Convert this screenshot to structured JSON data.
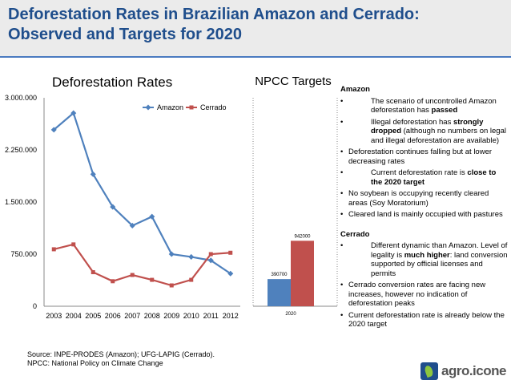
{
  "slide": {
    "title": "Deforestation Rates in Brazilian Amazon and Cerrado:\nObserved and Targets for 2020",
    "source": "Source: INPE-PRODES (Amazon); UFG-LAPIG (Cerrado).\nNPCC: National Policy on Climate Change",
    "logo_text": "agro.icone"
  },
  "colors": {
    "amazon": "#4f81bd",
    "cerrado": "#c0504d",
    "title": "#1f4e8c"
  },
  "chart_data": [
    {
      "type": "line",
      "title": "Deforestation Rates",
      "x": [
        "2003",
        "2004",
        "2005",
        "2006",
        "2007",
        "2008",
        "2009",
        "2010",
        "2011",
        "2012"
      ],
      "series": [
        {
          "name": "Amazon",
          "values": [
            2540000,
            2780000,
            1900000,
            1430000,
            1160000,
            1290000,
            750000,
            710000,
            660000,
            470000
          ]
        },
        {
          "name": "Cerrado",
          "values": [
            820000,
            890000,
            490000,
            360000,
            450000,
            380000,
            300000,
            380000,
            750000,
            770000
          ]
        }
      ],
      "yticks": [
        "3.000.000",
        "2.250.000",
        "1.500.000",
        "750.000",
        "0"
      ],
      "ylim": [
        0,
        3000000
      ],
      "legend": "top-right",
      "grid": false
    },
    {
      "type": "bar",
      "title": "NPCC Targets",
      "categories": [
        "2020"
      ],
      "series": [
        {
          "name": "Amazon",
          "values": [
            390700
          ],
          "label": "390700"
        },
        {
          "name": "Cerrado",
          "values": [
            942000
          ],
          "label": "942000"
        }
      ],
      "ylim": [
        0,
        3000000
      ]
    }
  ],
  "notes": {
    "amazon_heading": "Amazon",
    "amazon_items": [
      {
        "pre": "The scenario of uncontrolled Amazon deforestation has ",
        "bold": "passed",
        "post": "",
        "wide": true
      },
      {
        "pre": "Illegal deforestation has ",
        "bold": "strongly dropped",
        "post": " (although no numbers on legal and illegal deforestation are available)",
        "wide": true
      },
      {
        "pre": "Deforestation continues falling but at lower decreasing rates",
        "bold": "",
        "post": "",
        "wide": false
      },
      {
        "pre": "Current deforestation rate is ",
        "bold": "close to the 2020 target",
        "post": "",
        "wide": true
      },
      {
        "pre": "No soybean is occupying recently cleared areas (Soy Moratorium)",
        "bold": "",
        "post": "",
        "wide": false
      },
      {
        "pre": "Cleared land is mainly occupied with pastures",
        "bold": "",
        "post": "",
        "wide": false
      }
    ],
    "cerrado_heading": "Cerrado",
    "cerrado_items": [
      {
        "pre": "Different dynamic than Amazon. Level of legality is ",
        "bold": "much higher",
        "post": ": land conversion supported by official licenses and permits",
        "wide": true
      },
      {
        "pre": "Cerrado conversion rates are facing new increases, however no indication of deforestation peaks",
        "bold": "",
        "post": "",
        "wide": false
      },
      {
        "pre": "Current deforestation rate is already below the 2020 target",
        "bold": "",
        "post": "",
        "wide": false
      }
    ]
  }
}
